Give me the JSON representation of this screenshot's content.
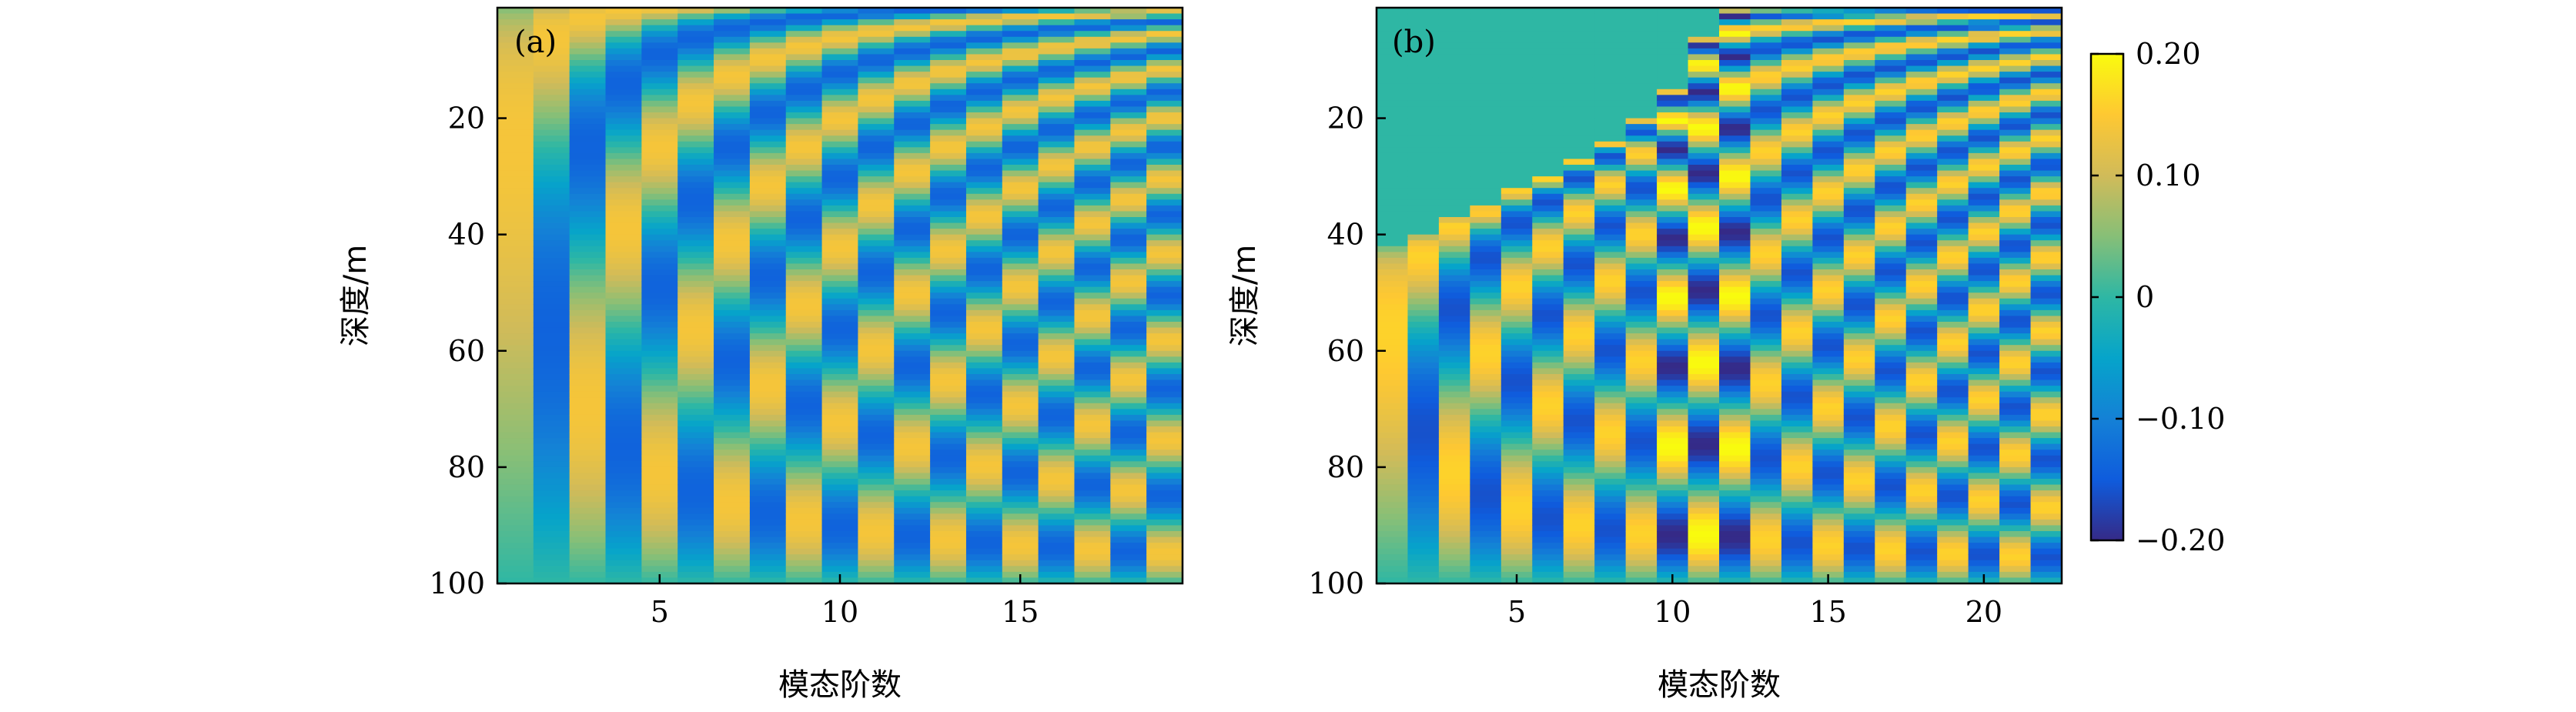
{
  "chart_data": [
    {
      "type": "heatmap",
      "panel_label": "(a)",
      "xlabel": "模态阶数",
      "ylabel": "深度/m",
      "x_ticks": [
        5,
        10,
        15
      ],
      "x_tick_labels": [
        "5",
        "10",
        "15"
      ],
      "y_ticks": [
        20,
        40,
        60,
        80,
        100
      ],
      "y_tick_labels": [
        "20",
        "40",
        "60",
        "80",
        "100"
      ],
      "x_range": [
        0.5,
        19.5
      ],
      "y_range": [
        1,
        100
      ],
      "y_inverted": true,
      "mode_count": 19,
      "depth_range": [
        1,
        100
      ],
      "value_range": [
        -0.2,
        0.2
      ],
      "mode_amplitude": 0.14,
      "description": "Normal-mode shape functions: mode n shows n alternating positive/negative bands with depth, bands compressed near the surface.",
      "shape_model": "sin(n*pi*sqrt(z/100))"
    },
    {
      "type": "heatmap",
      "panel_label": "(b)",
      "xlabel": "模态阶数",
      "ylabel": "深度/m",
      "x_ticks": [
        5,
        10,
        15,
        20
      ],
      "x_tick_labels": [
        "5",
        "10",
        "15",
        "20"
      ],
      "y_ticks": [
        20,
        40,
        60,
        80,
        100
      ],
      "y_tick_labels": [
        "20",
        "40",
        "60",
        "80",
        "100"
      ],
      "x_range": [
        0.5,
        22.5
      ],
      "y_range": [
        1,
        100
      ],
      "y_inverted": true,
      "mode_count": 22,
      "depth_range": [
        1,
        100
      ],
      "value_range": [
        -0.2,
        0.2
      ],
      "mode_amplitude": 0.16,
      "zero_region_depths": [
        42,
        40,
        37,
        35,
        32,
        30,
        27,
        24,
        20,
        15,
        6,
        1,
        1,
        1,
        1,
        1,
        1,
        1,
        1,
        1,
        1,
        1
      ],
      "peak_amplitude_modes": [
        10,
        11,
        12
      ],
      "peak_amplitude": 0.2
    }
  ],
  "colorbar": {
    "ticks": [
      0.2,
      0.1,
      0,
      -0.1,
      -0.2
    ],
    "tick_labels": [
      "0.20",
      "0.10",
      "0",
      "−0.10",
      "−0.20"
    ],
    "range": [
      -0.2,
      0.2
    ],
    "colormap": "parula",
    "colormap_stops": [
      "#352a87",
      "#0f5cdd",
      "#1481d6",
      "#06a4ca",
      "#2eb7a4",
      "#87bf77",
      "#d1bb59",
      "#fec832",
      "#f9fb0e"
    ]
  }
}
